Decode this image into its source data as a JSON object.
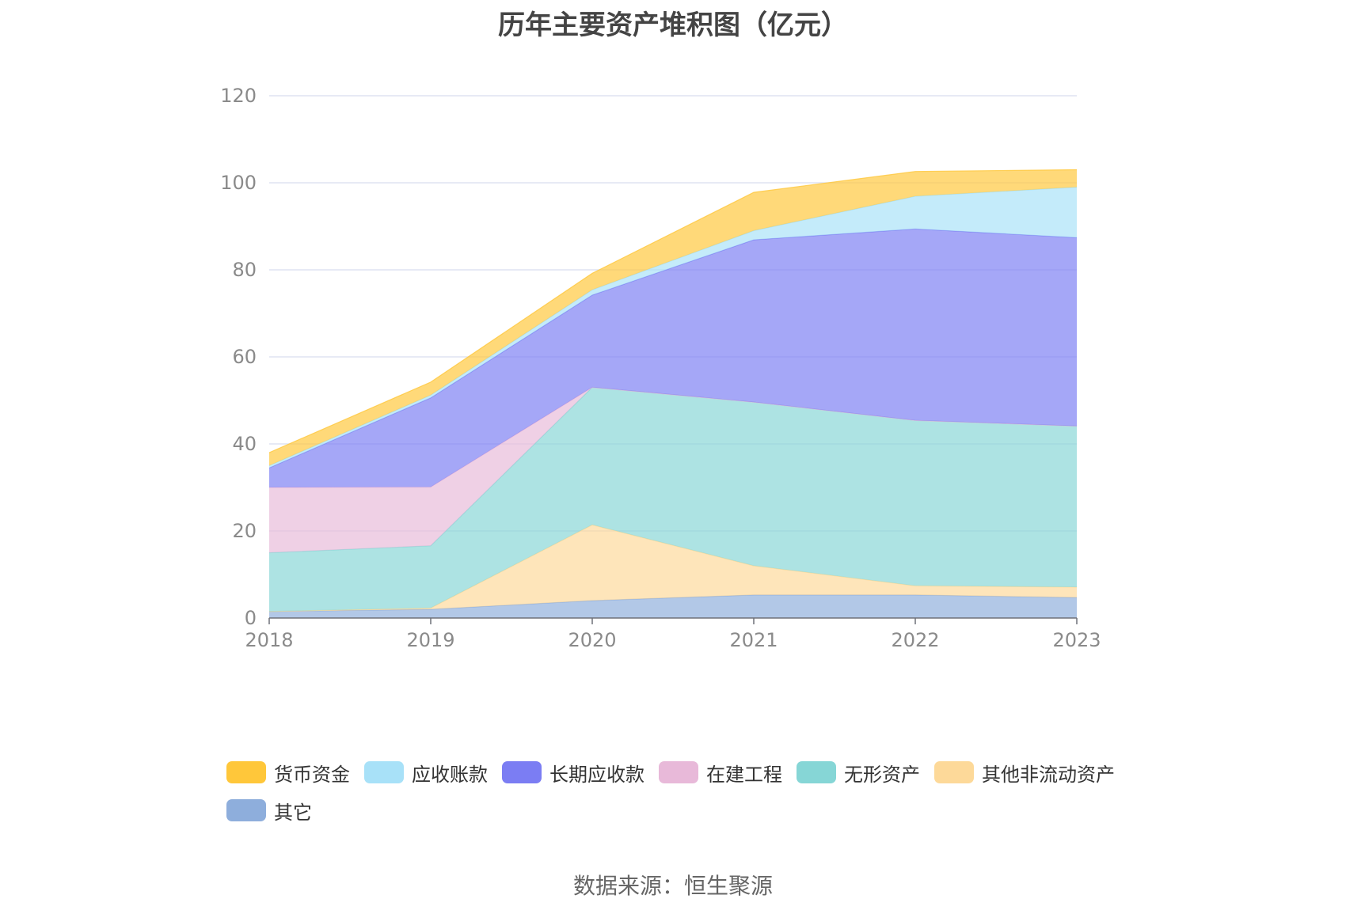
{
  "chart_data": {
    "type": "area",
    "stacked": true,
    "title": "历年主要资产堆积图（亿元）",
    "x": [
      "2018",
      "2019",
      "2020",
      "2021",
      "2022",
      "2023"
    ],
    "ylim": [
      0,
      120
    ],
    "yticks": [
      "0",
      "20",
      "40",
      "60",
      "80",
      "100",
      "120"
    ],
    "grid": true,
    "legend_position": "bottom",
    "series": [
      {
        "name": "其它",
        "color": "#8EAEDC",
        "values": [
          1.5,
          2.0,
          4.0,
          5.3,
          5.3,
          4.7
        ]
      },
      {
        "name": "其他非流动资产",
        "color": "#FDD999",
        "values": [
          0.0,
          0.3,
          17.4,
          6.7,
          2.1,
          2.4
        ]
      },
      {
        "name": "无形资产",
        "color": "#86D6D6",
        "values": [
          13.5,
          14.3,
          31.6,
          37.6,
          38.0,
          37.0
        ]
      },
      {
        "name": "在建工程",
        "color": "#E8B9D9",
        "values": [
          15.0,
          13.5,
          0.0,
          0.0,
          0.0,
          0.0
        ]
      },
      {
        "name": "长期应收款",
        "color": "#7B7DF3",
        "values": [
          4.5,
          20.5,
          21.2,
          37.3,
          44.0,
          43.3
        ]
      },
      {
        "name": "应收账款",
        "color": "#A8E1F8",
        "values": [
          0.5,
          0.6,
          1.2,
          2.1,
          7.5,
          11.6
        ]
      },
      {
        "name": "货币资金",
        "color": "#FFC73A",
        "values": [
          3.0,
          3.0,
          3.8,
          8.8,
          5.7,
          4.0
        ]
      }
    ],
    "legend_order": [
      "货币资金",
      "应收账款",
      "长期应收款",
      "在建工程",
      "无形资产",
      "其他非流动资产",
      "其它"
    ]
  },
  "source_text": "数据来源：恒生聚源"
}
